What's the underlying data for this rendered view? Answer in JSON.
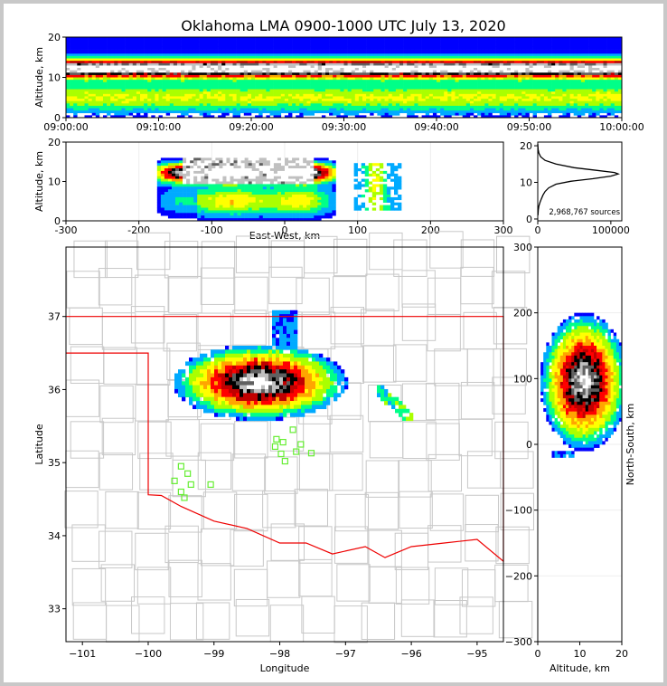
{
  "chart_data": [
    {
      "type": "heatmap",
      "panel": "altitude-vs-time",
      "title": "Oklahoma LMA 0900-1000 UTC July 13, 2020",
      "ylabel": "Altitude, km",
      "xlabel": "",
      "x_ticks": [
        "09:00:00",
        "09:10:00",
        "09:20:00",
        "09:30:00",
        "09:40:00",
        "09:50:00",
        "10:00:00"
      ],
      "y_ticks": [
        0,
        10,
        20
      ],
      "ylim": [
        0,
        20
      ],
      "altitude_profile_core_km": [
        11,
        13
      ],
      "altitude_profile_extent_km": [
        1,
        20
      ]
    },
    {
      "type": "heatmap",
      "panel": "altitude-vs-east-west",
      "xlabel": "East-West, km",
      "ylabel": "Altitude, km",
      "xlim": [
        -300,
        300
      ],
      "ylim": [
        0,
        20
      ],
      "x_ticks": [
        -300,
        -200,
        -100,
        0,
        100,
        200,
        300
      ],
      "y_ticks": [
        0,
        10,
        20
      ],
      "main_cluster_x_km": [
        -170,
        70
      ],
      "secondary_cluster_x_km": [
        95,
        160
      ]
    },
    {
      "type": "line",
      "panel": "altitude-histogram",
      "annotation": "2,968,767 sources",
      "x_ticks": [
        "0",
        "100000"
      ],
      "xlim": [
        0,
        115000
      ],
      "y_ticks": [
        0,
        10,
        20
      ],
      "ylim": [
        -0.5,
        21
      ],
      "series": [
        {
          "points": [
            [
              0,
              20.5
            ],
            [
              500,
              19
            ],
            [
              1500,
              18
            ],
            [
              4000,
              17
            ],
            [
              10000,
              16
            ],
            [
              25000,
              15
            ],
            [
              50000,
              14
            ],
            [
              80000,
              13.3
            ],
            [
              105000,
              12.7
            ],
            [
              110000,
              12.3
            ],
            [
              100000,
              11.7
            ],
            [
              75000,
              11
            ],
            [
              45000,
              10.3
            ],
            [
              25000,
              9.5
            ],
            [
              15000,
              8.5
            ],
            [
              10000,
              7.5
            ],
            [
              7000,
              6.5
            ],
            [
              5000,
              5.5
            ],
            [
              3000,
              4.5
            ],
            [
              1500,
              3.5
            ],
            [
              800,
              2.5
            ],
            [
              200,
              1
            ]
          ]
        }
      ]
    },
    {
      "type": "heatmap",
      "panel": "plan-view-map",
      "xlabel": "Longitude",
      "ylabel": "Latitude",
      "xlim": [
        -101.25,
        -94.6
      ],
      "ylim": [
        32.55,
        37.95
      ],
      "x_ticks": [
        -101,
        -100,
        -99,
        -98,
        -97,
        -96,
        -95
      ],
      "y_ticks": [
        33,
        34,
        35,
        36,
        37
      ],
      "stations": [
        [
          -99.5,
          34.95
        ],
        [
          -99.6,
          34.75
        ],
        [
          -99.4,
          34.85
        ],
        [
          -99.35,
          34.7
        ],
        [
          -99.5,
          34.6
        ],
        [
          -99.45,
          34.52
        ],
        [
          -99.05,
          34.7
        ],
        [
          -98.05,
          35.32
        ],
        [
          -97.95,
          35.28
        ],
        [
          -98.07,
          35.22
        ],
        [
          -97.98,
          35.12
        ],
        [
          -97.92,
          35.02
        ],
        [
          -97.8,
          35.45
        ],
        [
          -97.75,
          35.15
        ],
        [
          -97.68,
          35.25
        ],
        [
          -97.52,
          35.13
        ]
      ]
    },
    {
      "type": "heatmap",
      "panel": "north-south-vs-altitude",
      "xlabel": "Altitude, km",
      "ylabel": "North-South, km",
      "xlim": [
        0,
        20
      ],
      "ylim": [
        -300,
        300
      ],
      "x_ticks": [
        0,
        10,
        20
      ],
      "y_ticks": [
        -300,
        -200,
        -100,
        0,
        100,
        200,
        300
      ]
    }
  ],
  "colors": {
    "density_scale": [
      "#0000ff",
      "#00aaff",
      "#00ff88",
      "#aaff00",
      "#ffff00",
      "#ffa500",
      "#ff0000",
      "#c00000",
      "#000000",
      "#606060",
      "#c0c0c0",
      "#ffffff"
    ],
    "state_border": "#ee0000",
    "county_lines": "#c8c8c8",
    "station_marker": "#66ee33"
  }
}
